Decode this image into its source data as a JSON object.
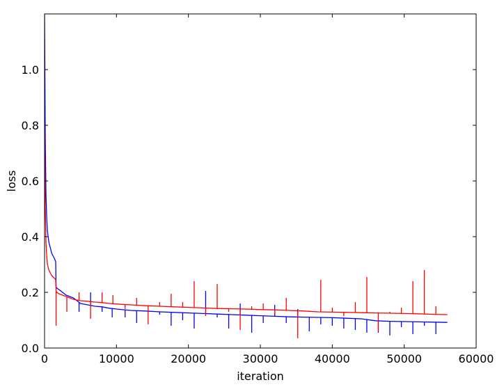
{
  "chart_data": {
    "type": "line",
    "title": "",
    "xlabel": "iteration",
    "ylabel": "loss",
    "xlim": [
      0,
      60000
    ],
    "ylim": [
      0,
      1.2
    ],
    "xticks": [
      0,
      10000,
      20000,
      30000,
      40000,
      50000,
      60000
    ],
    "xtick_labels": [
      "0",
      "10000",
      "20000",
      "30000",
      "40000",
      "50000",
      "60000"
    ],
    "yticks": [
      0.0,
      0.2,
      0.4,
      0.6,
      0.8,
      1.0
    ],
    "ytick_labels": [
      "0.0",
      "0.2",
      "0.4",
      "0.6",
      "0.8",
      "1.0"
    ],
    "grid": false,
    "legend": false,
    "series": [
      {
        "color": "#0000ff",
        "x": [
          0,
          100,
          200,
          300,
          400,
          600,
          800,
          1000,
          1200,
          1400,
          1550,
          1600,
          1700,
          2000,
          2500,
          3000,
          3500,
          4000,
          5000,
          6000,
          7000,
          8000,
          9000,
          10000,
          12000,
          14000,
          16000,
          18000,
          20000,
          22000,
          24000,
          26000,
          28000,
          30000,
          32000,
          34000,
          36000,
          38000,
          40000,
          42000,
          44000,
          46000,
          48000,
          50000,
          52000,
          54000,
          56000
        ],
        "y": [
          1.2,
          0.75,
          0.55,
          0.47,
          0.42,
          0.38,
          0.36,
          0.34,
          0.33,
          0.32,
          0.31,
          0.22,
          0.215,
          0.21,
          0.2,
          0.19,
          0.185,
          0.18,
          0.16,
          0.155,
          0.15,
          0.148,
          0.143,
          0.14,
          0.135,
          0.133,
          0.13,
          0.128,
          0.126,
          0.124,
          0.122,
          0.12,
          0.118,
          0.116,
          0.114,
          0.112,
          0.111,
          0.11,
          0.109,
          0.107,
          0.105,
          0.098,
          0.096,
          0.095,
          0.094,
          0.093,
          0.092
        ],
        "spikes": [
          [
            4800,
            0.13
          ],
          [
            6400,
            0.2
          ],
          [
            8000,
            0.13
          ],
          [
            9400,
            0.11
          ],
          [
            11200,
            0.11
          ],
          [
            12800,
            0.09
          ],
          [
            14400,
            0.13
          ],
          [
            16000,
            0.12
          ],
          [
            17600,
            0.08
          ],
          [
            19200,
            0.1
          ],
          [
            20800,
            0.07
          ],
          [
            22400,
            0.205
          ],
          [
            24000,
            0.11
          ],
          [
            25600,
            0.07
          ],
          [
            27200,
            0.16
          ],
          [
            28800,
            0.055
          ],
          [
            30400,
            0.09
          ],
          [
            32000,
            0.155
          ],
          [
            33600,
            0.09
          ],
          [
            35200,
            0.14
          ],
          [
            36800,
            0.06
          ],
          [
            38400,
            0.085
          ],
          [
            40000,
            0.08
          ],
          [
            41600,
            0.07
          ],
          [
            43200,
            0.065
          ],
          [
            44800,
            0.055
          ],
          [
            46400,
            0.055
          ],
          [
            48000,
            0.045
          ],
          [
            49600,
            0.075
          ],
          [
            51200,
            0.05
          ],
          [
            52800,
            0.08
          ],
          [
            54400,
            0.05
          ]
        ]
      },
      {
        "color": "#ff0000",
        "x": [
          0,
          100,
          200,
          300,
          400,
          600,
          800,
          1000,
          1200,
          1400,
          1550,
          1600,
          1700,
          2000,
          2500,
          3000,
          3500,
          4000,
          5000,
          6000,
          7000,
          8000,
          9000,
          10000,
          12000,
          14000,
          16000,
          18000,
          20000,
          22000,
          24000,
          26000,
          28000,
          30000,
          32000,
          34000,
          36000,
          38000,
          40000,
          42000,
          44000,
          46000,
          48000,
          50000,
          52000,
          54000,
          56000
        ],
        "y": [
          0.8,
          0.5,
          0.38,
          0.33,
          0.3,
          0.28,
          0.27,
          0.26,
          0.255,
          0.25,
          0.245,
          0.205,
          0.2,
          0.195,
          0.19,
          0.185,
          0.18,
          0.175,
          0.17,
          0.168,
          0.165,
          0.163,
          0.16,
          0.158,
          0.155,
          0.152,
          0.15,
          0.148,
          0.146,
          0.144,
          0.142,
          0.141,
          0.14,
          0.138,
          0.137,
          0.135,
          0.133,
          0.13,
          0.129,
          0.128,
          0.127,
          0.126,
          0.125,
          0.124,
          0.123,
          0.121,
          0.12
        ],
        "spikes": [
          [
            1600,
            0.08
          ],
          [
            3100,
            0.13
          ],
          [
            4800,
            0.2
          ],
          [
            6400,
            0.105
          ],
          [
            8000,
            0.2
          ],
          [
            9500,
            0.19
          ],
          [
            11200,
            0.14
          ],
          [
            12800,
            0.18
          ],
          [
            14400,
            0.085
          ],
          [
            16000,
            0.165
          ],
          [
            17600,
            0.195
          ],
          [
            19200,
            0.165
          ],
          [
            20800,
            0.24
          ],
          [
            22400,
            0.115
          ],
          [
            24000,
            0.23
          ],
          [
            25600,
            0.13
          ],
          [
            27200,
            0.065
          ],
          [
            28800,
            0.15
          ],
          [
            30400,
            0.16
          ],
          [
            32000,
            0.12
          ],
          [
            33600,
            0.18
          ],
          [
            35200,
            0.035
          ],
          [
            36800,
            0.13
          ],
          [
            38400,
            0.245
          ],
          [
            40000,
            0.145
          ],
          [
            41600,
            0.115
          ],
          [
            43200,
            0.165
          ],
          [
            44800,
            0.255
          ],
          [
            46400,
            0.06
          ],
          [
            48000,
            0.13
          ],
          [
            49600,
            0.145
          ],
          [
            51200,
            0.24
          ],
          [
            52800,
            0.28
          ],
          [
            54400,
            0.15
          ]
        ]
      }
    ]
  }
}
